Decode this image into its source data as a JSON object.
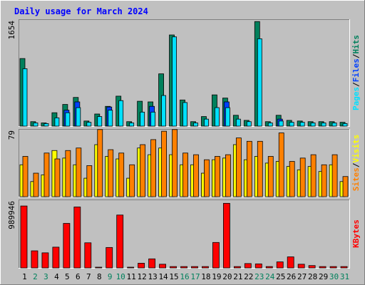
{
  "title": "Daily usage for March 2024",
  "chart_data": [
    {
      "type": "bar",
      "panel": "hits-files-pages",
      "max_label": "1654",
      "ylim": [
        0,
        1654
      ],
      "legend": [
        {
          "label": "Pages",
          "color": "#00e0ff"
        },
        {
          "label": "/",
          "color": "#000000"
        },
        {
          "label": "Files",
          "color": "#0040ff"
        },
        {
          "label": "/",
          "color": "#000000"
        },
        {
          "label": "Hits",
          "color": "#00805c"
        }
      ],
      "categories": [
        "1",
        "2",
        "3",
        "4",
        "5",
        "6",
        "7",
        "8",
        "9",
        "10",
        "11",
        "12",
        "13",
        "14",
        "15",
        "16",
        "17",
        "18",
        "19",
        "20",
        "21",
        "22",
        "23",
        "24",
        "25",
        "26",
        "27",
        "28",
        "29",
        "30",
        "31"
      ],
      "series": [
        {
          "name": "Hits",
          "color": "#00805c",
          "values": [
            1060,
            70,
            50,
            210,
            340,
            450,
            80,
            190,
            310,
            470,
            70,
            390,
            380,
            820,
            1430,
            410,
            70,
            150,
            490,
            440,
            170,
            90,
            1640,
            70,
            170,
            90,
            80,
            70,
            70,
            70,
            60
          ]
        },
        {
          "name": "Files",
          "color": "#0040ff",
          "values": [
            0,
            0,
            0,
            0,
            250,
            380,
            0,
            0,
            300,
            0,
            0,
            0,
            310,
            0,
            0,
            0,
            0,
            0,
            0,
            380,
            0,
            0,
            0,
            0,
            110,
            0,
            0,
            0,
            0,
            0,
            0
          ]
        },
        {
          "name": "Pages",
          "color": "#00e0ff",
          "values": [
            900,
            50,
            40,
            130,
            210,
            290,
            60,
            150,
            250,
            400,
            50,
            220,
            220,
            480,
            1400,
            370,
            50,
            110,
            290,
            290,
            110,
            70,
            1370,
            50,
            80,
            60,
            60,
            50,
            50,
            50,
            40
          ]
        }
      ]
    },
    {
      "type": "bar",
      "panel": "visits-sites",
      "max_label": "79",
      "ylim": [
        0,
        79
      ],
      "legend": [
        {
          "label": "Sites",
          "color": "#ff8000"
        },
        {
          "label": "/",
          "color": "#000000"
        },
        {
          "label": "Visits",
          "color": "#ffff00"
        }
      ],
      "categories": [
        "1",
        "2",
        "3",
        "4",
        "5",
        "6",
        "7",
        "8",
        "9",
        "10",
        "11",
        "12",
        "13",
        "14",
        "15",
        "16",
        "17",
        "18",
        "19",
        "20",
        "21",
        "22",
        "23",
        "24",
        "25",
        "26",
        "27",
        "28",
        "29",
        "30",
        "31"
      ],
      "series": [
        {
          "name": "Visits",
          "color": "#ffff00",
          "values": [
            38,
            18,
            26,
            55,
            46,
            38,
            22,
            62,
            48,
            45,
            22,
            58,
            50,
            58,
            50,
            38,
            38,
            28,
            44,
            46,
            62,
            44,
            48,
            40,
            42,
            36,
            32,
            36,
            30,
            38,
            18
          ]
        },
        {
          "name": "Sites",
          "color": "#ff8000",
          "values": [
            48,
            28,
            52,
            45,
            55,
            58,
            37,
            80,
            56,
            52,
            38,
            62,
            68,
            78,
            80,
            52,
            50,
            44,
            48,
            50,
            70,
            66,
            66,
            48,
            76,
            42,
            46,
            50,
            38,
            50,
            24
          ]
        }
      ]
    },
    {
      "type": "bar",
      "panel": "kbytes",
      "max_label": "989946",
      "ylim": [
        0,
        989946
      ],
      "legend": [
        {
          "label": "KBytes",
          "color": "#ff0000"
        }
      ],
      "categories": [
        "1",
        "2",
        "3",
        "4",
        "5",
        "6",
        "7",
        "8",
        "9",
        "10",
        "11",
        "12",
        "13",
        "14",
        "15",
        "16",
        "17",
        "18",
        "19",
        "20",
        "21",
        "22",
        "23",
        "24",
        "25",
        "26",
        "27",
        "28",
        "29",
        "30",
        "31"
      ],
      "series": [
        {
          "name": "KBytes",
          "color": "#ff0000",
          "values": [
            925000,
            255000,
            225000,
            310000,
            665000,
            910000,
            375000,
            10000,
            305000,
            790000,
            10000,
            70000,
            135000,
            55000,
            20000,
            20000,
            20000,
            20000,
            380000,
            965000,
            20000,
            65000,
            60000,
            20000,
            90000,
            165000,
            55000,
            35000,
            20000,
            20000,
            20000
          ]
        }
      ]
    }
  ],
  "day_labels": [
    "1",
    "2",
    "3",
    "4",
    "5",
    "6",
    "7",
    "8",
    "9",
    "10",
    "11",
    "12",
    "13",
    "14",
    "15",
    "16",
    "17",
    "18",
    "19",
    "20",
    "21",
    "22",
    "23",
    "24",
    "25",
    "26",
    "27",
    "28",
    "29",
    "30",
    "31"
  ],
  "weekend_days": [
    2,
    3,
    9,
    10,
    16,
    17,
    23,
    24,
    30,
    31
  ],
  "colors": {
    "weekday_label": "#000000",
    "weekend_label": "#00805c",
    "title": "#0000ff",
    "panel_bg": "#c0c0c0",
    "bar_outline": "#000000"
  }
}
